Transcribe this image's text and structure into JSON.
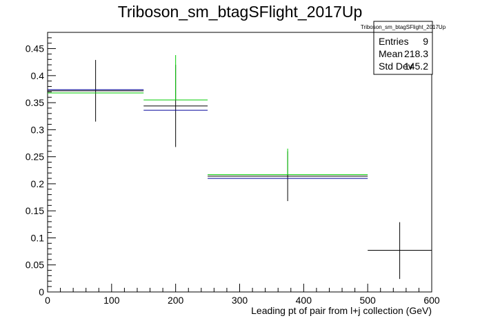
{
  "chart_data": {
    "type": "scatter",
    "title": "Triboson_sm_btagSFlight_2017Up",
    "xlabel": "Leading pt of pair from l+j collection (GeV)",
    "ylabel": "",
    "xlim": [
      0,
      600
    ],
    "ylim": [
      0,
      0.48
    ],
    "xticks": [
      0,
      100,
      200,
      300,
      400,
      500,
      600
    ],
    "yticks": [
      0,
      0.05,
      0.1,
      0.15,
      0.2,
      0.25,
      0.3,
      0.35,
      0.4,
      0.45
    ],
    "grid": false,
    "series": [
      {
        "color": "#000000",
        "points": [
          {
            "x": 75,
            "xlow": 0,
            "xhigh": 150,
            "y": 0.372,
            "ylow": 0.315,
            "yhigh": 0.429
          },
          {
            "x": 200,
            "xlow": 150,
            "xhigh": 250,
            "y": 0.344,
            "ylow": 0.268,
            "yhigh": 0.42
          },
          {
            "x": 375,
            "xlow": 250,
            "xhigh": 500,
            "y": 0.214,
            "ylow": 0.168,
            "yhigh": 0.26
          },
          {
            "x": 550,
            "xlow": 500,
            "xhigh": 600,
            "y": 0.077,
            "ylow": 0.024,
            "yhigh": 0.129
          }
        ]
      },
      {
        "color": "#00cc00",
        "points": [
          {
            "x": 75,
            "xlow": 0,
            "xhigh": 150,
            "y": 0.368,
            "ylow": 0.368,
            "yhigh": 0.368
          },
          {
            "x": 200,
            "xlow": 150,
            "xhigh": 250,
            "y": 0.355,
            "ylow": 0.355,
            "yhigh": 0.438
          },
          {
            "x": 375,
            "xlow": 250,
            "xhigh": 500,
            "y": 0.217,
            "ylow": 0.217,
            "yhigh": 0.265
          }
        ]
      },
      {
        "color": "#000099",
        "points": [
          {
            "x": 75,
            "xlow": 0,
            "xhigh": 150,
            "y": 0.374
          },
          {
            "x": 200,
            "xlow": 150,
            "xhigh": 250,
            "y": 0.336
          },
          {
            "x": 375,
            "xlow": 250,
            "xhigh": 500,
            "y": 0.21
          }
        ]
      }
    ],
    "stats_box": {
      "title": "Triboson_sm_btagSFlight_2017Up",
      "rows": [
        {
          "label": "Entries",
          "value": "9"
        },
        {
          "label": "Mean",
          "value": "218.3"
        },
        {
          "label": "Std Dev",
          "value": "145.2"
        }
      ]
    }
  }
}
